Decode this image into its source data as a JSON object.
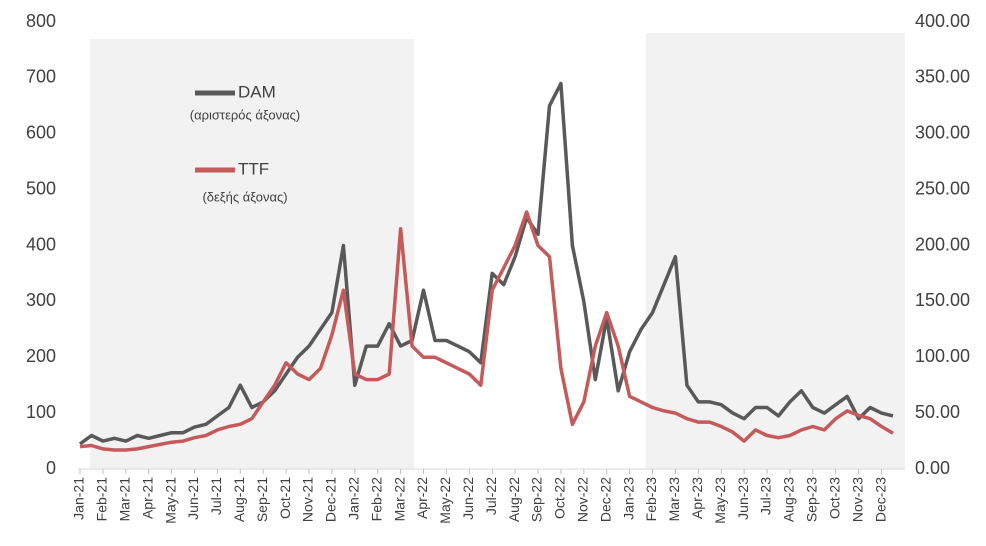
{
  "chart_data": {
    "type": "line",
    "categories": [
      "Jan-21",
      null,
      "Feb-21",
      null,
      "Mar-21",
      null,
      "Apr-21",
      null,
      "May-21",
      null,
      "Jun-21",
      null,
      "Jul-21",
      null,
      "Aug-21",
      null,
      "Sep-21",
      null,
      "Oct-21",
      null,
      "Nov-21",
      null,
      "Dec-21",
      null,
      "Jan-22",
      null,
      "Feb-22",
      null,
      "Mar-22",
      null,
      "Apr-22",
      null,
      "May-22",
      null,
      "Jun-22",
      null,
      "Jul-22",
      null,
      "Aug-22",
      null,
      "Sep-22",
      null,
      "Oct-22",
      null,
      "Nov-22",
      null,
      "Dec-22",
      null,
      "Jan-23",
      null,
      "Feb-23",
      null,
      "Mar-23",
      null,
      "Apr-23",
      null,
      "May-23",
      null,
      "Jun-23",
      null,
      "Jul-23",
      null,
      "Aug-23",
      null,
      "Sep-23",
      null,
      "Oct-23",
      null,
      "Nov-23",
      null,
      "Dec-23",
      null
    ],
    "series": [
      {
        "name": "DAM",
        "note": "(αριστερός άξονας)",
        "color": "#595959",
        "axis": "y",
        "values": [
          45,
          60,
          50,
          55,
          50,
          60,
          55,
          60,
          65,
          65,
          75,
          80,
          95,
          110,
          150,
          110,
          120,
          140,
          170,
          200,
          220,
          250,
          280,
          400,
          150,
          220,
          220,
          260,
          220,
          230,
          320,
          230,
          230,
          220,
          210,
          190,
          350,
          330,
          380,
          450,
          420,
          650,
          690,
          400,
          300,
          160,
          270,
          140,
          210,
          250,
          280,
          330,
          380,
          150,
          120,
          120,
          115,
          100,
          90,
          110,
          110,
          95,
          120,
          140,
          110,
          100,
          115,
          130,
          90,
          110,
          100,
          95
        ]
      },
      {
        "name": "TTF",
        "note": "(δεξής άξονας)",
        "color": "#c55a5a",
        "axis": "y2",
        "values": [
          20,
          21,
          18,
          17,
          17,
          18,
          20,
          22,
          24,
          25,
          28,
          30,
          35,
          38,
          40,
          45,
          60,
          75,
          95,
          85,
          80,
          90,
          120,
          160,
          85,
          80,
          80,
          85,
          215,
          110,
          100,
          100,
          95,
          90,
          85,
          75,
          160,
          180,
          200,
          230,
          200,
          190,
          90,
          40,
          60,
          110,
          140,
          110,
          65,
          60,
          55,
          52,
          50,
          45,
          42,
          42,
          38,
          33,
          25,
          35,
          30,
          28,
          30,
          35,
          38,
          35,
          45,
          52,
          48,
          45,
          38,
          32
        ]
      }
    ],
    "ylim": [
      0,
      800
    ],
    "yticks": [
      0,
      100,
      200,
      300,
      400,
      500,
      600,
      700,
      800
    ],
    "y2lim": [
      0,
      400
    ],
    "y2ticks": [
      {
        "value": 0,
        "label": "0.00"
      },
      {
        "value": 50,
        "label": "50.00"
      },
      {
        "value": 100,
        "label": "100.00"
      },
      {
        "value": 150,
        "label": "150.00"
      },
      {
        "value": 200,
        "label": "200.00"
      },
      {
        "value": 250,
        "label": "250.00"
      },
      {
        "value": 300,
        "label": "300.00"
      },
      {
        "value": 350,
        "label": "350.00"
      },
      {
        "value": 400,
        "label": "400.00"
      }
    ],
    "grid": false
  }
}
